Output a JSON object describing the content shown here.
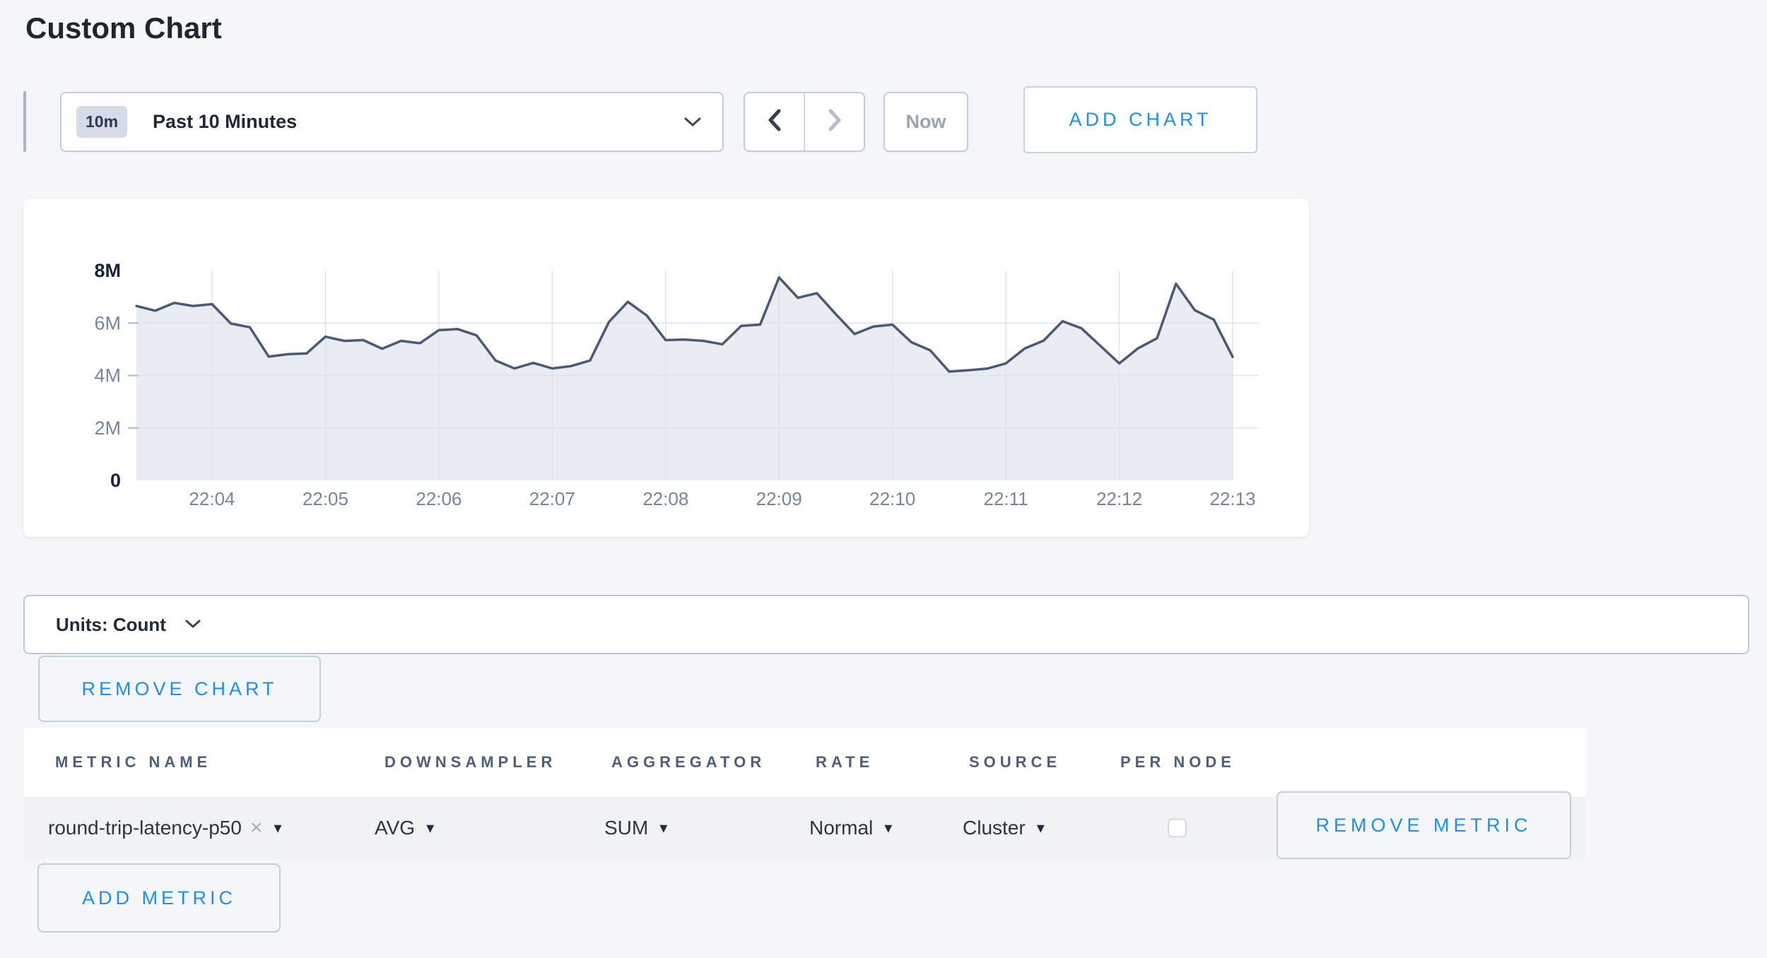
{
  "page_title": "Custom Chart",
  "toolbar": {
    "time_badge": "10m",
    "time_label": "Past 10 Minutes",
    "now_label": "Now",
    "add_chart_label": "ADD CHART"
  },
  "units_bar": {
    "label": "Units: Count"
  },
  "remove_chart_label": "REMOVE CHART",
  "add_metric_label": "ADD METRIC",
  "metrics_table": {
    "headers": [
      "METRIC NAME",
      "DOWNSAMPLER",
      "AGGREGATOR",
      "RATE",
      "SOURCE",
      "PER NODE"
    ],
    "rows": [
      {
        "metric_name": "round-trip-latency-p50",
        "downsampler": "AVG",
        "aggregator": "SUM",
        "rate": "Normal",
        "source": "Cluster",
        "per_node_checked": false,
        "remove_label": "REMOVE METRIC"
      }
    ]
  },
  "glyphs": {
    "close": "×",
    "caret": "▾"
  },
  "colors": {
    "accent_blue": "#1e8ff2",
    "page_bg": "#f4f6f9",
    "line": "#495a77",
    "fill": "#e9ecf2",
    "grid": "#dfe3eb",
    "axis_dark": "#16233f",
    "axis_gray": "#7486a0"
  },
  "chart_data": {
    "type": "area",
    "title": "",
    "series": [
      {
        "name": "round-trip-latency-p50",
        "unit": "Count",
        "values_millions": [
          6.65,
          6.47,
          6.77,
          6.65,
          6.72,
          5.98,
          5.84,
          4.72,
          4.81,
          4.84,
          5.48,
          5.32,
          5.35,
          5.02,
          5.32,
          5.23,
          5.73,
          5.77,
          5.53,
          4.57,
          4.27,
          4.48,
          4.27,
          4.36,
          4.57,
          6.04,
          6.81,
          6.29,
          5.35,
          5.37,
          5.32,
          5.19,
          5.89,
          5.94,
          7.74,
          6.96,
          7.14,
          6.34,
          5.58,
          5.87,
          5.94,
          5.27,
          4.96,
          4.15,
          4.2,
          4.26,
          4.46,
          5.03,
          5.33,
          6.07,
          5.8,
          5.13,
          4.46,
          5.04,
          5.42,
          7.5,
          6.49,
          6.13,
          4.71
        ]
      }
    ],
    "x_start": "22:03:20",
    "x_end": "22:13:00",
    "interval_seconds": 10,
    "x_ticks": [
      "22:04",
      "22:05",
      "22:06",
      "22:07",
      "22:08",
      "22:09",
      "22:10",
      "22:11",
      "22:12",
      "22:13"
    ],
    "first_tick_index": 4,
    "tick_step": 6,
    "y_ticks": [
      "0",
      "2M",
      "4M",
      "6M",
      "8M"
    ],
    "y_max_millions": 8,
    "ylim": [
      0,
      8000000
    ],
    "grid": true,
    "legend": "none",
    "line_color": "#495a77",
    "fill_color": "#e9ecf2",
    "grid_color": "#dfe3eb"
  }
}
